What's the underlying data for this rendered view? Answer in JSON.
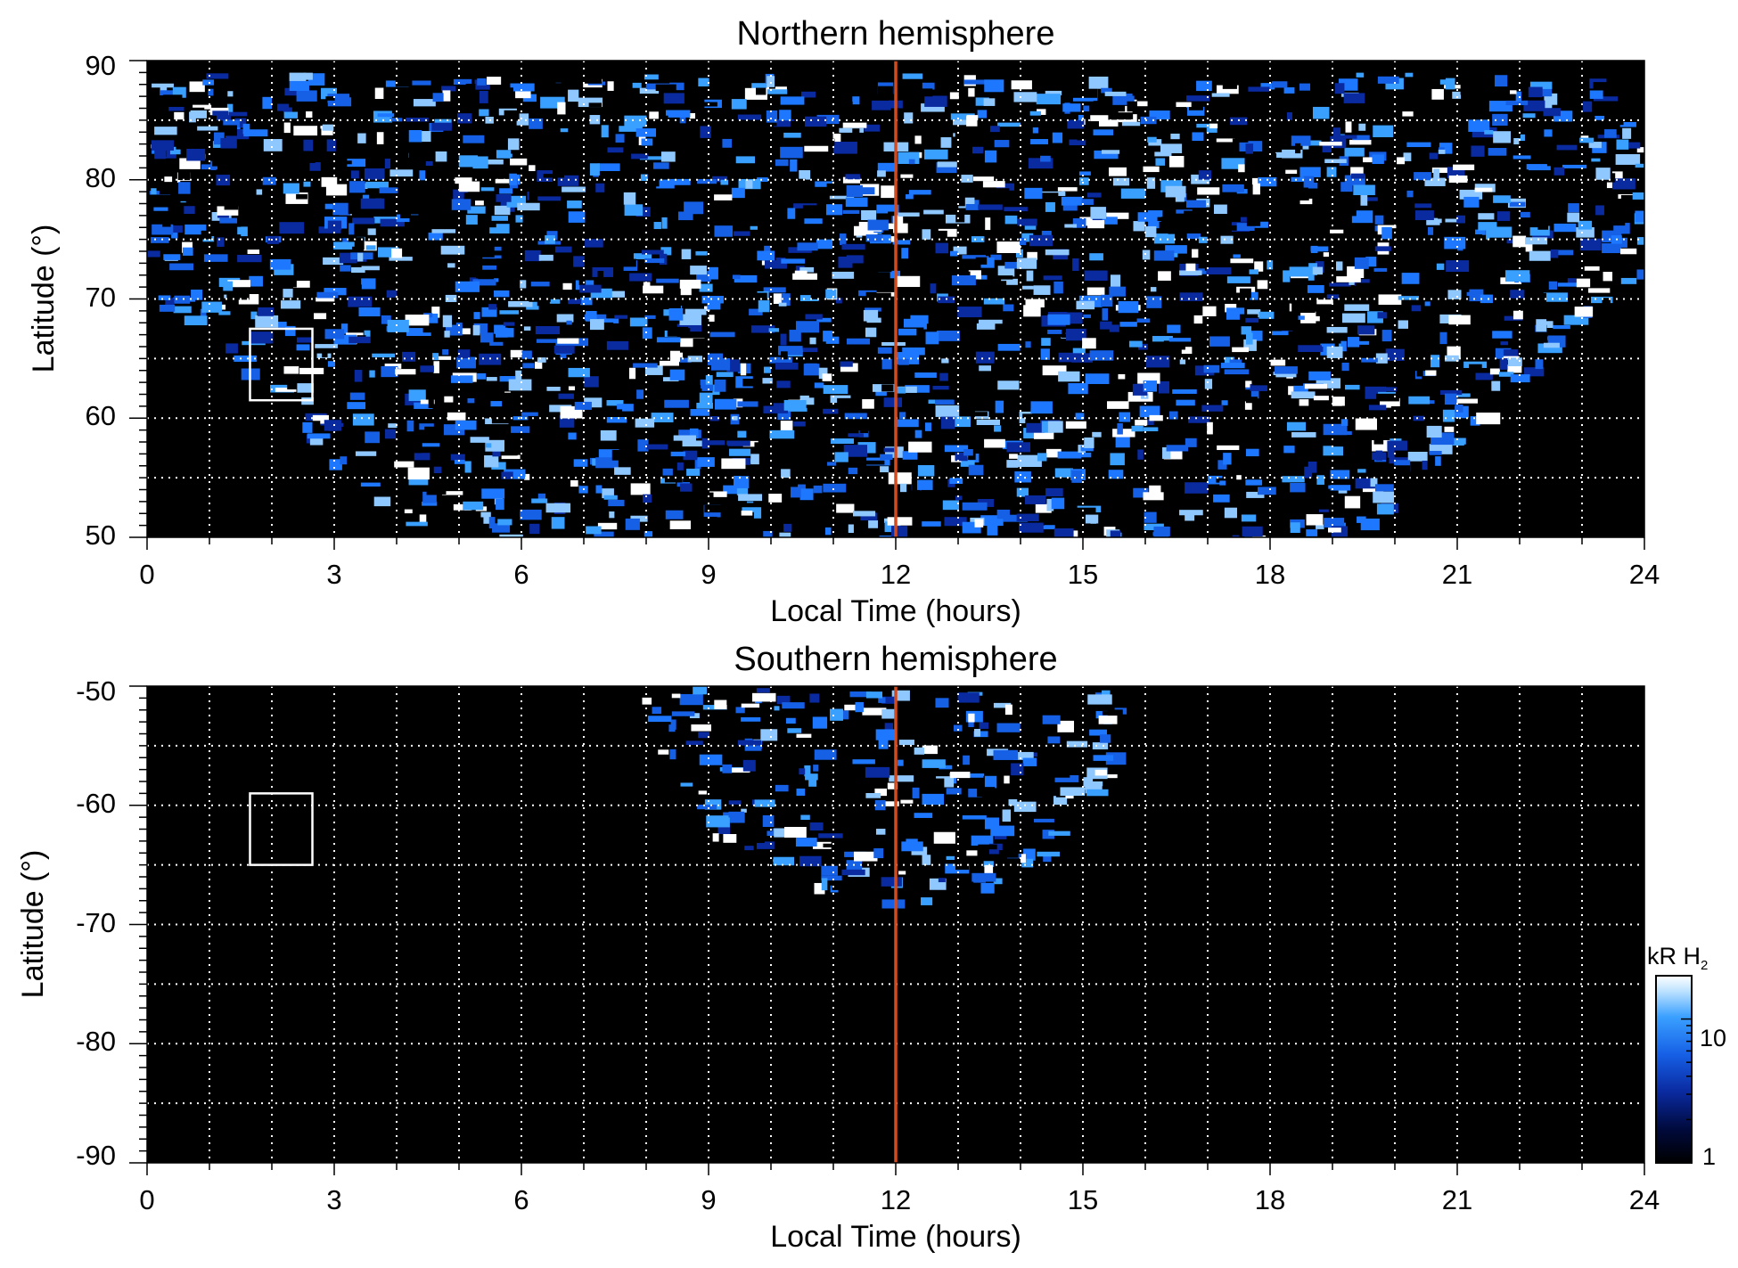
{
  "chart_data": [
    {
      "type": "heatmap",
      "title": "Northern hemisphere",
      "xlabel": "Local Time (hours)",
      "ylabel": "Latitude (°)",
      "xlim": [
        0,
        24
      ],
      "ylim": [
        50,
        90
      ],
      "x_ticks": [
        "0",
        "3",
        "6",
        "9",
        "12",
        "15",
        "18",
        "21",
        "24"
      ],
      "y_ticks": [
        "50",
        "60",
        "70",
        "80",
        "90"
      ],
      "grid": "dotted, every 1 hour and 5 degrees",
      "noon_line_x": 12,
      "boxed_region": {
        "x": [
          1.65,
          2.65
        ],
        "y": [
          61.5,
          67.5
        ]
      },
      "coverage_note": "emission observed poleward of ~70 deg near midnight, extending to 50 deg between ~4 h and ~19.5 h",
      "colors": {
        "noon_line": "#d44a1f",
        "background": "#000000",
        "emission": "#1e78ff"
      }
    },
    {
      "type": "heatmap",
      "title": "Southern hemisphere",
      "xlabel": "Local Time (hours)",
      "ylabel": "Latitude (°)",
      "xlim": [
        0,
        24
      ],
      "ylim": [
        -90,
        -50
      ],
      "x_ticks": [
        "0",
        "3",
        "6",
        "9",
        "12",
        "15",
        "18",
        "21",
        "24"
      ],
      "y_ticks": [
        "-50",
        "-60",
        "-70",
        "-80",
        "-90"
      ],
      "grid": "dotted, every 1 hour and 5 degrees",
      "noon_line_x": 12,
      "boxed_region": {
        "x": [
          1.65,
          2.65
        ],
        "y": [
          -65,
          -59
        ]
      },
      "coverage_note": "emission only between ~8 h and ~16 h local time, from -50 down to about -68 deg",
      "colors": {
        "noon_line": "#d44a1f",
        "background": "#000000",
        "emission": "#1e78ff"
      }
    }
  ],
  "colorbar": {
    "label": "kR H",
    "label_subscript": "2",
    "scale": "log",
    "range": [
      1,
      20
    ],
    "ticks": [
      "10",
      "1"
    ],
    "colormap": [
      "#000000",
      "#000a3c",
      "#0a2aa0",
      "#1660e6",
      "#3aa0ff",
      "#bfe3ff",
      "#ffffff"
    ]
  }
}
